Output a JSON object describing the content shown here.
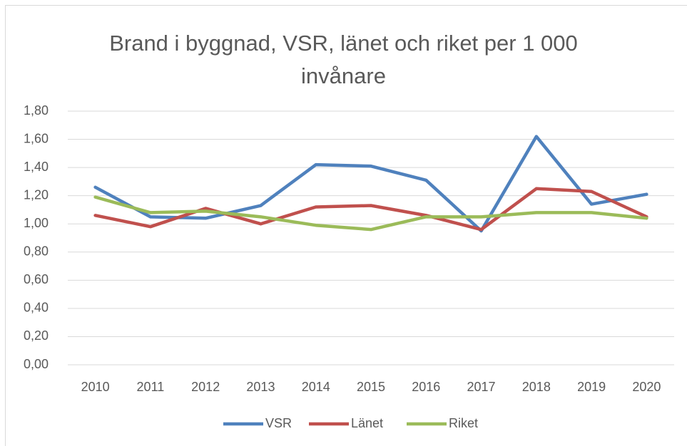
{
  "chart_data": {
    "type": "line",
    "title": "Brand i byggnad, VSR, länet och riket per 1 000 invånare",
    "categories": [
      "2010",
      "2011",
      "2012",
      "2013",
      "2014",
      "2015",
      "2016",
      "2017",
      "2018",
      "2019",
      "2020"
    ],
    "series": [
      {
        "name": "VSR",
        "color": "#4f81bd",
        "values": [
          1.26,
          1.05,
          1.04,
          1.13,
          1.42,
          1.41,
          1.31,
          0.95,
          1.62,
          1.14,
          1.21
        ]
      },
      {
        "name": "Länet",
        "color": "#c0504d",
        "values": [
          1.06,
          0.98,
          1.11,
          1.0,
          1.12,
          1.13,
          1.06,
          0.96,
          1.25,
          1.23,
          1.05
        ]
      },
      {
        "name": "Riket",
        "color": "#9bbb59",
        "values": [
          1.19,
          1.08,
          1.09,
          1.05,
          0.99,
          0.96,
          1.05,
          1.05,
          1.08,
          1.08,
          1.04
        ]
      }
    ],
    "ylim": [
      0,
      1.8
    ],
    "yticks": [
      {
        "value": 0,
        "label": "0,00"
      },
      {
        "value": 0.2,
        "label": "0,20"
      },
      {
        "value": 0.4,
        "label": "0,40"
      },
      {
        "value": 0.6,
        "label": "0,60"
      },
      {
        "value": 0.8,
        "label": "0,80"
      },
      {
        "value": 1.0,
        "label": "1,00"
      },
      {
        "value": 1.2,
        "label": "1,20"
      },
      {
        "value": 1.4,
        "label": "1,40"
      },
      {
        "value": 1.6,
        "label": "1,60"
      },
      {
        "value": 1.8,
        "label": "1,80"
      }
    ],
    "grid": true,
    "legend": "bottom"
  }
}
